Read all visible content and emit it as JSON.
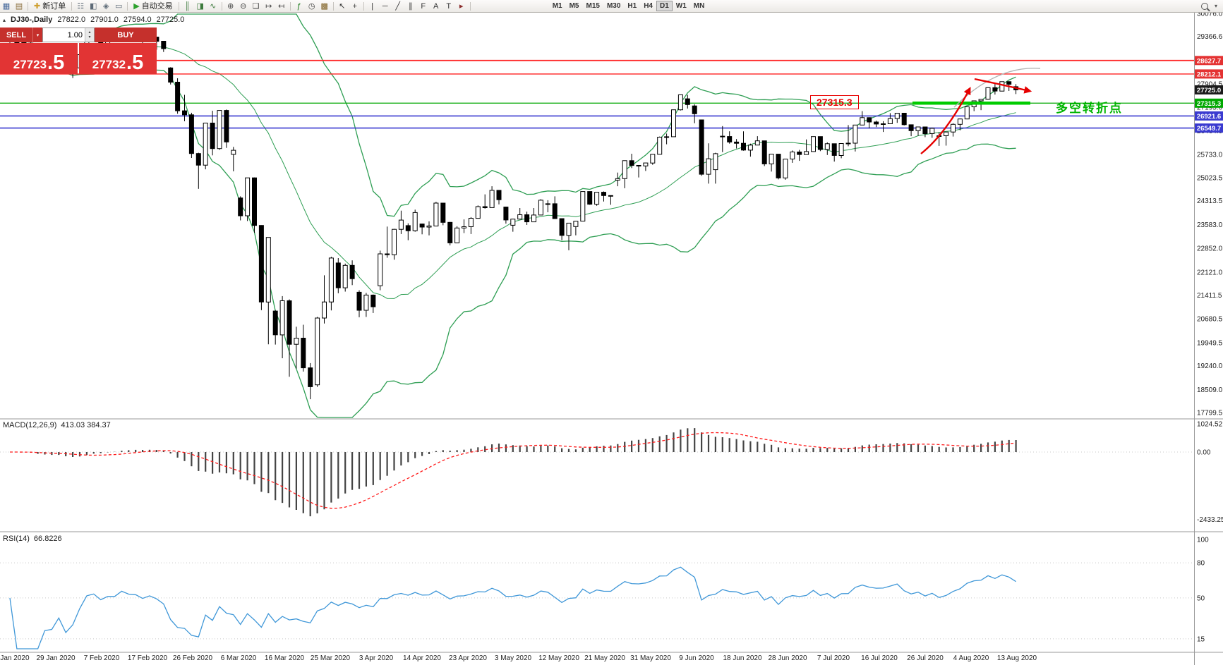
{
  "toolbar": {
    "items": [
      {
        "t": "icon",
        "n": "new-chart-icon",
        "g": "▦",
        "c": "#44679a"
      },
      {
        "t": "icon",
        "n": "profiles-icon",
        "g": "▤",
        "c": "#8a6d3b"
      },
      {
        "t": "sep"
      },
      {
        "t": "btn",
        "n": "new-order-button",
        "label": "新订单",
        "g": "✚",
        "c": "#cf9f2f"
      },
      {
        "t": "sep"
      },
      {
        "t": "icon",
        "n": "market-watch-icon",
        "g": "☷",
        "c": "#5d6a77"
      },
      {
        "t": "icon",
        "n": "data-window-icon",
        "g": "◧",
        "c": "#5d6a77"
      },
      {
        "t": "icon",
        "n": "navigator-icon",
        "g": "◈",
        "c": "#5d6a77"
      },
      {
        "t": "icon",
        "n": "terminal-icon",
        "g": "▭",
        "c": "#5d6a77"
      },
      {
        "t": "sep"
      },
      {
        "t": "btn",
        "n": "autotrade-button",
        "label": "自动交易",
        "g": "▶",
        "c": "#2da12d"
      },
      {
        "t": "sep"
      },
      {
        "t": "icon",
        "n": "bar-chart-icon",
        "g": "║",
        "c": "#3c7a3c"
      },
      {
        "t": "icon",
        "n": "candle-chart-icon",
        "g": "◨",
        "c": "#3c7a3c"
      },
      {
        "t": "icon",
        "n": "line-chart-icon",
        "g": "∿",
        "c": "#3c7a3c"
      },
      {
        "t": "sep"
      },
      {
        "t": "icon",
        "n": "zoom-in-icon",
        "g": "⊕",
        "c": "#444"
      },
      {
        "t": "icon",
        "n": "zoom-out-icon",
        "g": "⊖",
        "c": "#444"
      },
      {
        "t": "icon",
        "n": "tile-windows-icon",
        "g": "❏",
        "c": "#444"
      },
      {
        "t": "icon",
        "n": "auto-scroll-icon",
        "g": "↦",
        "c": "#444"
      },
      {
        "t": "icon",
        "n": "chart-shift-icon",
        "g": "↤",
        "c": "#444"
      },
      {
        "t": "sep"
      },
      {
        "t": "icon",
        "n": "indicators-icon",
        "g": "ƒ",
        "c": "#1a7a1a"
      },
      {
        "t": "icon",
        "n": "periods-icon",
        "g": "◷",
        "c": "#444"
      },
      {
        "t": "icon",
        "n": "templates-icon",
        "g": "▩",
        "c": "#7a5a1a"
      },
      {
        "t": "sep"
      },
      {
        "t": "icon",
        "n": "cursor-icon",
        "g": "↖",
        "c": "#333"
      },
      {
        "t": "icon",
        "n": "crosshair-icon",
        "g": "+",
        "c": "#333"
      },
      {
        "t": "sep"
      },
      {
        "t": "icon",
        "n": "vertical-line-icon",
        "g": "|",
        "c": "#333"
      },
      {
        "t": "icon",
        "n": "horizontal-line-icon",
        "g": "─",
        "c": "#333"
      },
      {
        "t": "icon",
        "n": "trendline-icon",
        "g": "╱",
        "c": "#333"
      },
      {
        "t": "icon",
        "n": "channel-icon",
        "g": "∥",
        "c": "#333"
      },
      {
        "t": "icon",
        "n": "fibonacci-icon",
        "g": "F",
        "c": "#333"
      },
      {
        "t": "icon",
        "n": "text-label-icon",
        "g": "A",
        "c": "#333"
      },
      {
        "t": "icon",
        "n": "text-icon",
        "g": "T",
        "c": "#333"
      },
      {
        "t": "icon",
        "n": "arrows-icon",
        "g": "▸",
        "c": "#8a2a2a"
      },
      {
        "t": "sep"
      }
    ],
    "timeframes": [
      "M1",
      "M5",
      "M15",
      "M30",
      "H1",
      "H4",
      "D1",
      "W1",
      "MN"
    ],
    "active_timeframe": "D1",
    "right_caret": "▾"
  },
  "chart_header": {
    "marker": "▴",
    "symbol": "DJ30-,Daily",
    "open": "27822.0",
    "high": "27901.0",
    "low": "27594.0",
    "close": "27725.0"
  },
  "trade_panel": {
    "sell_label": "SELL",
    "buy_label": "BUY",
    "caret": "▾",
    "volume": "1.00",
    "spinner_up": "▴",
    "spinner_down": "▾",
    "bid_main": "27723",
    "bid_frac": ".5",
    "ask_main": "27732",
    "ask_frac": ".5"
  },
  "indicators": {
    "macd_label": "MACD(12,26,9)",
    "macd_values": "413.03 384.37",
    "rsi_label": "RSI(14)",
    "rsi_value": "66.8226"
  },
  "annotations": {
    "price_box": "27315.3",
    "turning_point": "多空转折点"
  },
  "axes": {
    "price_labels": [
      "30076.0",
      "29366.6",
      "28635.5",
      "27904.5",
      "27195.0",
      "26464.0",
      "25733.0",
      "25023.5",
      "24313.5",
      "23583.0",
      "22852.0",
      "22121.0",
      "21411.5",
      "20680.5",
      "19949.5",
      "19240.0",
      "18509.0",
      "17799.5"
    ],
    "badges": [
      {
        "value": "28627.7",
        "bg": "#e43232"
      },
      {
        "value": "28212.1",
        "bg": "#e43232"
      },
      {
        "value": "27725.0",
        "bg": "#1a1a1a"
      },
      {
        "value": "27315.3",
        "bg": "#00a800"
      },
      {
        "value": "26921.6",
        "bg": "#3a3ad0"
      },
      {
        "value": "26549.7",
        "bg": "#3a3ad0"
      }
    ],
    "macd_labels": [
      {
        "t": "1024.52",
        "v": 1024.52
      },
      {
        "t": "0.00",
        "v": 0
      },
      {
        "t": "-2433.25",
        "v": -2433.25
      }
    ],
    "rsi_labels": [
      {
        "t": "100",
        "v": 100
      },
      {
        "t": "80",
        "v": 80
      },
      {
        "t": "50",
        "v": 50
      },
      {
        "t": "15",
        "v": 15
      }
    ],
    "dates": [
      "20 Jan 2020",
      "29 Jan 2020",
      "7 Feb 2020",
      "17 Feb 2020",
      "26 Feb 2020",
      "6 Mar 2020",
      "16 Mar 2020",
      "25 Mar 2020",
      "3 Apr 2020",
      "14 Apr 2020",
      "23 Apr 2020",
      "3 May 2020",
      "12 May 2020",
      "21 May 2020",
      "31 May 2020",
      "9 Jun 2020",
      "18 Jun 2020",
      "28 Jun 2020",
      "7 Jul 2020",
      "16 Jul 2020",
      "26 Jul 2020",
      "4 Aug 2020",
      "13 Aug 2020"
    ]
  },
  "chart_data": {
    "type": "candlestick",
    "symbol": "DJ30",
    "timeframe": "Daily",
    "title": "DJ30-,Daily 27822.0 27901.0 27594.0 27725.0",
    "y_axis_range": [
      17799.5,
      30076.0
    ],
    "x_axis_dates": [
      "20 Jan 2020",
      "29 Jan 2020",
      "7 Feb 2020",
      "17 Feb 2020",
      "26 Feb 2020",
      "6 Mar 2020",
      "16 Mar 2020",
      "25 Mar 2020",
      "3 Apr 2020",
      "14 Apr 2020",
      "23 Apr 2020",
      "3 May 2020",
      "12 May 2020",
      "21 May 2020",
      "31 May 2020",
      "9 Jun 2020",
      "18 Jun 2020",
      "28 Jun 2020",
      "7 Jul 2020",
      "16 Jul 2020",
      "26 Jul 2020",
      "4 Aug 2020",
      "13 Aug 2020"
    ],
    "ohlc": [
      [
        29290,
        29320,
        29150,
        29196
      ],
      [
        29196,
        29280,
        29130,
        29186
      ],
      [
        29186,
        29230,
        28960,
        29160
      ],
      [
        29160,
        29230,
        28830,
        28990
      ],
      [
        28680,
        28750,
        28440,
        28536
      ],
      [
        28536,
        28760,
        28500,
        28723
      ],
      [
        28723,
        28840,
        28680,
        28734
      ],
      [
        28734,
        28890,
        28550,
        28859
      ],
      [
        28859,
        28870,
        28250,
        28256
      ],
      [
        28256,
        28480,
        28090,
        28400
      ],
      [
        28400,
        28830,
        28390,
        28808
      ],
      [
        28808,
        29310,
        28800,
        29291
      ],
      [
        29291,
        29410,
        29230,
        29380
      ],
      [
        29380,
        29390,
        29060,
        29103
      ],
      [
        29103,
        29290,
        29030,
        29277
      ],
      [
        29277,
        29415,
        29210,
        29276
      ],
      [
        29276,
        29570,
        29270,
        29551
      ],
      [
        29551,
        29560,
        29330,
        29423
      ],
      [
        29423,
        29480,
        29330,
        29398
      ],
      [
        29398,
        29400,
        29120,
        29232
      ],
      [
        29232,
        29380,
        29190,
        29348
      ],
      [
        29348,
        29360,
        28960,
        29220
      ],
      [
        29220,
        29230,
        28890,
        28992
      ],
      [
        28400,
        28420,
        27890,
        27961
      ],
      [
        27961,
        28080,
        26990,
        27081
      ],
      [
        27081,
        27570,
        26760,
        26958
      ],
      [
        26958,
        27020,
        25630,
        25767
      ],
      [
        25767,
        25790,
        24680,
        25409
      ],
      [
        25409,
        26710,
        25280,
        26703
      ],
      [
        26703,
        27080,
        25710,
        25917
      ],
      [
        25917,
        27100,
        25880,
        27091
      ],
      [
        27091,
        27120,
        25940,
        26121
      ],
      [
        25740,
        25970,
        25220,
        25865
      ],
      [
        24400,
        24450,
        23710,
        23851
      ],
      [
        23851,
        25020,
        23690,
        25018
      ],
      [
        25018,
        25030,
        23330,
        23553
      ],
      [
        23553,
        23560,
        20950,
        21200
      ],
      [
        21200,
        23190,
        19900,
        23186
      ],
      [
        20920,
        20950,
        19890,
        20188
      ],
      [
        20188,
        21380,
        19470,
        21237
      ],
      [
        21237,
        21280,
        18900,
        19899
      ],
      [
        19899,
        20440,
        19150,
        20087
      ],
      [
        20087,
        20500,
        19060,
        19174
      ],
      [
        19174,
        19320,
        18210,
        18592
      ],
      [
        18650,
        20740,
        18590,
        20705
      ],
      [
        20705,
        22020,
        20540,
        21200
      ],
      [
        21200,
        22590,
        20940,
        22552
      ],
      [
        22400,
        22550,
        21470,
        21637
      ],
      [
        21637,
        22380,
        21520,
        22327
      ],
      [
        22327,
        22480,
        21720,
        21917
      ],
      [
        21500,
        21560,
        20730,
        20944
      ],
      [
        20944,
        21480,
        20740,
        21413
      ],
      [
        21413,
        21430,
        20860,
        21053
      ],
      [
        21700,
        22780,
        21560,
        22680
      ],
      [
        22680,
        23520,
        22560,
        22654
      ],
      [
        22654,
        23450,
        22500,
        23434
      ],
      [
        23434,
        24010,
        23290,
        23719
      ],
      [
        23550,
        23620,
        23100,
        23391
      ],
      [
        23391,
        24040,
        23360,
        23950
      ],
      [
        23600,
        23610,
        23280,
        23504
      ],
      [
        23504,
        23680,
        23250,
        23538
      ],
      [
        23538,
        24280,
        23530,
        24242
      ],
      [
        24242,
        24250,
        23560,
        23650
      ],
      [
        23650,
        23660,
        22940,
        23018
      ],
      [
        23018,
        23530,
        23010,
        23476
      ],
      [
        23476,
        23740,
        23320,
        23515
      ],
      [
        23515,
        23810,
        23290,
        23775
      ],
      [
        23775,
        24170,
        23770,
        24134
      ],
      [
        24134,
        24510,
        24070,
        24102
      ],
      [
        24102,
        24760,
        24100,
        24634
      ],
      [
        24634,
        24640,
        24200,
        24346
      ],
      [
        24120,
        24130,
        23610,
        23724
      ],
      [
        23560,
        23760,
        23360,
        23749
      ],
      [
        23749,
        24090,
        23740,
        23883
      ],
      [
        23883,
        23980,
        23570,
        23665
      ],
      [
        23665,
        24090,
        23660,
        23876
      ],
      [
        23876,
        24360,
        23870,
        24331
      ],
      [
        24220,
        24330,
        23960,
        24222
      ],
      [
        24222,
        24450,
        23760,
        23765
      ],
      [
        23765,
        23770,
        23100,
        23248
      ],
      [
        23248,
        23630,
        22790,
        23625
      ],
      [
        23520,
        23690,
        23250,
        23685
      ],
      [
        23685,
        24600,
        23680,
        24597
      ],
      [
        24597,
        24600,
        24190,
        24207
      ],
      [
        24207,
        24580,
        24160,
        24576
      ],
      [
        24576,
        24600,
        24290,
        24474
      ],
      [
        24474,
        24480,
        24190,
        24465
      ],
      [
        24950,
        25180,
        24760,
        24995
      ],
      [
        24995,
        25550,
        24700,
        25548
      ],
      [
        25548,
        25760,
        25320,
        25401
      ],
      [
        25401,
        25410,
        25030,
        25383
      ],
      [
        25383,
        25480,
        25230,
        25475
      ],
      [
        25475,
        25750,
        25420,
        25743
      ],
      [
        25743,
        26290,
        25740,
        26270
      ],
      [
        26270,
        26380,
        26050,
        26282
      ],
      [
        26282,
        27110,
        26280,
        27111
      ],
      [
        27111,
        27580,
        27090,
        27572
      ],
      [
        27450,
        27570,
        27150,
        27272
      ],
      [
        27230,
        27280,
        26700,
        26990
      ],
      [
        26800,
        26810,
        25080,
        25128
      ],
      [
        25128,
        26080,
        24840,
        25605
      ],
      [
        25270,
        25790,
        24840,
        25763
      ],
      [
        26300,
        26610,
        25810,
        26290
      ],
      [
        26290,
        26450,
        26070,
        26120
      ],
      [
        26120,
        26210,
        25920,
        26080
      ],
      [
        26080,
        26450,
        25850,
        25871
      ],
      [
        25871,
        26070,
        25670,
        26025
      ],
      [
        26025,
        26300,
        26020,
        26156
      ],
      [
        26156,
        26160,
        25380,
        25446
      ],
      [
        25446,
        25750,
        25210,
        25746
      ],
      [
        25746,
        25750,
        24970,
        25016
      ],
      [
        25016,
        25600,
        24960,
        25596
      ],
      [
        25596,
        25860,
        25480,
        25813
      ],
      [
        25813,
        25880,
        25540,
        25735
      ],
      [
        25735,
        26200,
        25730,
        25827
      ],
      [
        25827,
        26290,
        25820,
        26287
      ],
      [
        26287,
        26290,
        25840,
        25890
      ],
      [
        25890,
        26110,
        25720,
        26067
      ],
      [
        26067,
        26070,
        25520,
        25706
      ],
      [
        25706,
        26080,
        25620,
        26075
      ],
      [
        26075,
        26640,
        25990,
        26086
      ],
      [
        26086,
        26650,
        25830,
        26643
      ],
      [
        26643,
        27070,
        26640,
        26870
      ],
      [
        26870,
        26880,
        26540,
        26735
      ],
      [
        26735,
        26780,
        26580,
        26672
      ],
      [
        26672,
        26760,
        26430,
        26681
      ],
      [
        26681,
        27010,
        26680,
        26840
      ],
      [
        26840,
        27010,
        26710,
        27006
      ],
      [
        27006,
        27010,
        26630,
        26652
      ],
      [
        26652,
        26660,
        26300,
        26470
      ],
      [
        26470,
        26590,
        26310,
        26585
      ],
      [
        26585,
        26590,
        26270,
        26379
      ],
      [
        26379,
        26560,
        26250,
        26540
      ],
      [
        26300,
        26420,
        26000,
        26313
      ],
      [
        26313,
        26430,
        26010,
        26428
      ],
      [
        26428,
        26700,
        26290,
        26664
      ],
      [
        26664,
        26840,
        26480,
        26828
      ],
      [
        26828,
        27210,
        26820,
        27202
      ],
      [
        27202,
        27390,
        27070,
        27387
      ],
      [
        27387,
        27440,
        27100,
        27433
      ],
      [
        27433,
        27800,
        27420,
        27791
      ],
      [
        27791,
        27920,
        27580,
        27686
      ],
      [
        27686,
        27980,
        27680,
        27977
      ],
      [
        27977,
        27990,
        27690,
        27897
      ],
      [
        27822,
        27901,
        27594,
        27725
      ]
    ],
    "overlays": {
      "bollinger_bands": {
        "period": 20,
        "deviation": 2,
        "color": "#2e9e53"
      }
    },
    "sub_indicators": [
      {
        "type": "MACD",
        "params": [
          12,
          26,
          9
        ],
        "last_values": [
          413.03,
          384.37
        ],
        "y_labels": [
          1024.52,
          0.0,
          -2433.25
        ],
        "histogram_color": "#444444",
        "signal_color": "#ff1a1a"
      },
      {
        "type": "RSI",
        "params": [
          14
        ],
        "last_value": 66.8226,
        "y_labels": [
          100,
          80,
          50,
          15
        ],
        "line_color": "#3f97d8"
      }
    ],
    "horizontal_levels": [
      {
        "price": 28627.7,
        "color": "#ff2222",
        "width": 1.8
      },
      {
        "price": 28212.1,
        "color": "#ff2222",
        "width": 1.4
      },
      {
        "price": 27315.3,
        "color": "#00a800",
        "width": 1.2
      },
      {
        "price": 26921.6,
        "color": "#3a3ad0",
        "width": 1.6
      },
      {
        "price": 26549.7,
        "color": "#3a3ad0",
        "width": 1.6
      }
    ],
    "drawn_annotations": [
      {
        "type": "thick-support-segment",
        "price": 27315.3,
        "color": "#00cc00"
      },
      {
        "type": "rally-arrow",
        "color": "#e60000"
      },
      {
        "type": "pullback-arrow",
        "color": "#e60000"
      },
      {
        "type": "grey-trend-curve",
        "color": "#b5b5b5"
      },
      {
        "type": "price-label-box",
        "text": "27315.3",
        "color": "#e80000"
      },
      {
        "type": "text",
        "text": "多空转折点",
        "color": "#00b400"
      }
    ]
  }
}
